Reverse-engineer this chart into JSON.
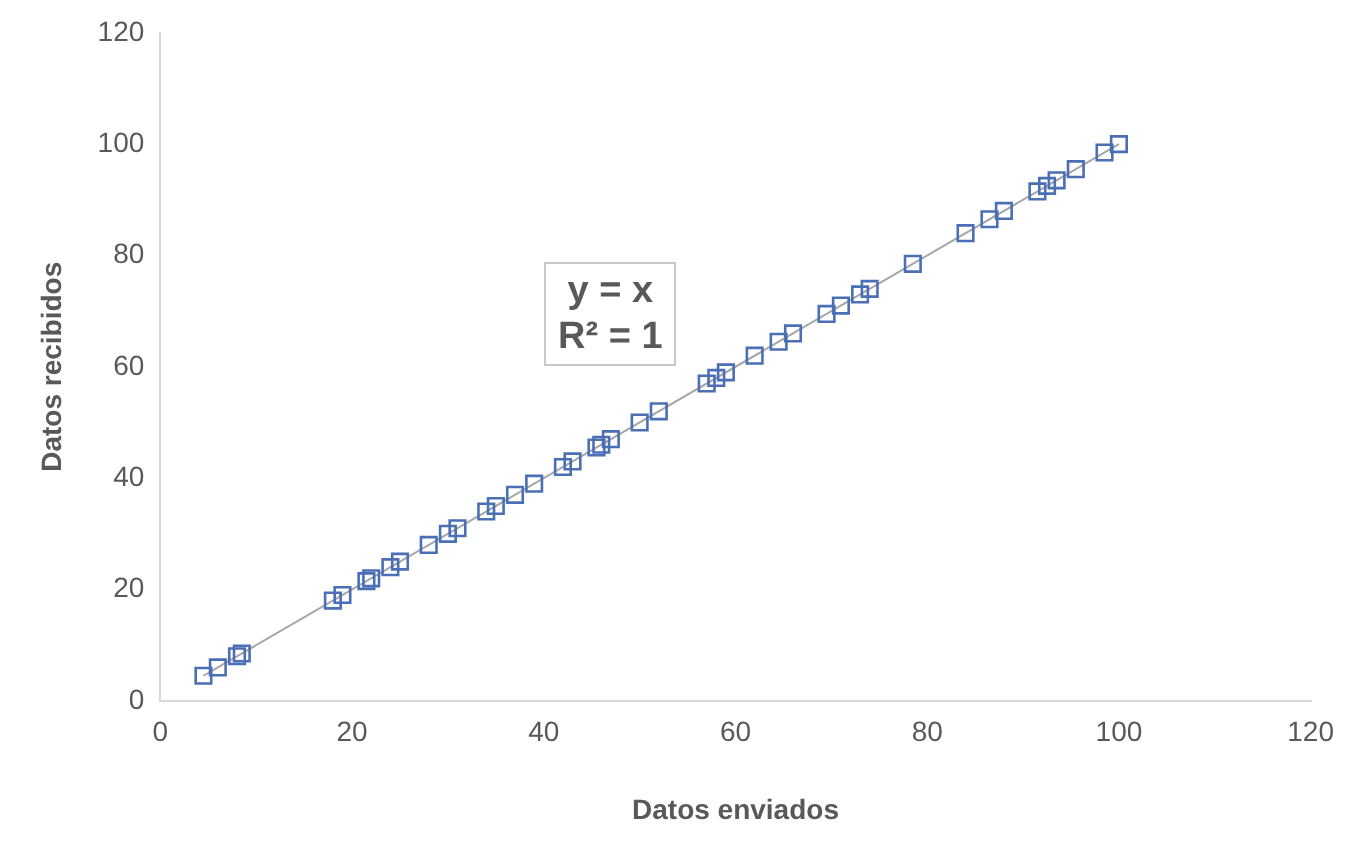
{
  "chart_data": {
    "type": "scatter",
    "xlabel": "Datos enviados",
    "ylabel": "Datos recibidos",
    "xlim": [
      0,
      120
    ],
    "xticks": [
      0,
      20,
      40,
      60,
      80,
      100,
      120
    ],
    "ylim": [
      0,
      120
    ],
    "yticks": [
      0,
      20,
      40,
      60,
      80,
      100,
      120
    ],
    "grid": false,
    "legend": false,
    "marker": "square",
    "annotations": [
      "y = x",
      "R² = 1"
    ],
    "series": [
      {
        "type": "line",
        "color": "#a6a6a6",
        "marker": "none",
        "x": [
          4.5,
          100
        ],
        "values": [
          4.5,
          100
        ]
      },
      {
        "color": "#4a6fb5",
        "x": [
          4.5,
          6,
          8,
          8.5,
          18,
          19,
          21.5,
          22,
          24,
          25,
          28,
          30,
          31,
          34,
          35,
          37,
          39,
          42,
          43,
          45.5,
          46,
          47,
          50,
          52,
          57,
          58,
          59,
          62,
          64.5,
          66,
          69.5,
          71,
          73,
          74,
          78.5,
          84,
          86.5,
          88,
          91.5,
          92.5,
          93.5,
          95.5,
          98.5,
          100
        ],
        "values": [
          4.5,
          6,
          8,
          8.5,
          18,
          19,
          21.5,
          22,
          24,
          25,
          28,
          30,
          31,
          34,
          35,
          37,
          39,
          42,
          43,
          45.5,
          46,
          47,
          50,
          52,
          57,
          58,
          59,
          62,
          64.5,
          66,
          69.5,
          71,
          73,
          74,
          78.5,
          84,
          86.5,
          88,
          91.5,
          92.5,
          93.5,
          95.5,
          98.5,
          100
        ]
      }
    ]
  }
}
